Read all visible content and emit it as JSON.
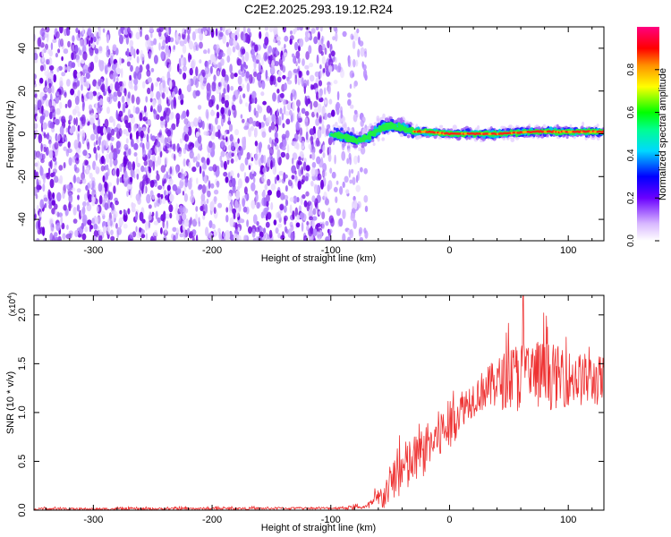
{
  "title": "C2E2.2025.293.19.12.R24",
  "colors": {
    "snr_line": "#ee3333",
    "scatter_base": "#7a1ee8",
    "band_core": "#ff2a1a"
  },
  "chart_data": [
    {
      "id": "spectrogram",
      "type": "heatmap",
      "title": "C2E2.2025.293.19.12.R24",
      "xlabel": "Height of straight line (km)",
      "ylabel": "Frequency (Hz)",
      "xlim": [
        -350,
        130
      ],
      "ylim": [
        -50,
        50
      ],
      "xticks": [
        -300,
        -200,
        -100,
        0,
        100
      ],
      "xtick_labels": [
        "-300",
        "-200",
        "-100",
        "0",
        "100"
      ],
      "yticks": [
        -40,
        -20,
        0,
        20,
        40
      ],
      "ytick_labels": [
        "-40",
        "-20",
        "0",
        "20",
        "40"
      ],
      "noise_region_x": [
        -350,
        -80
      ],
      "signal_band": {
        "x_start": -100,
        "x_end": 130,
        "center_hz": [
          {
            "x": -100,
            "y": 0
          },
          {
            "x": -90,
            "y": -1
          },
          {
            "x": -80,
            "y": -3
          },
          {
            "x": -70,
            "y": -2
          },
          {
            "x": -60,
            "y": 2
          },
          {
            "x": -50,
            "y": 4
          },
          {
            "x": -40,
            "y": 3
          },
          {
            "x": -30,
            "y": 1
          },
          {
            "x": -20,
            "y": 1
          },
          {
            "x": 0,
            "y": 0
          },
          {
            "x": 40,
            "y": 0
          },
          {
            "x": 70,
            "y": 1
          },
          {
            "x": 100,
            "y": 1
          },
          {
            "x": 130,
            "y": 1
          }
        ],
        "peak_amplitude_after_km": -30
      }
    },
    {
      "id": "colorbar",
      "type": "heatmap",
      "label": "Normalized spectral amplitude",
      "range": [
        0.0,
        1.0
      ],
      "ticks": [
        0.0,
        0.2,
        0.4,
        0.6,
        0.8
      ],
      "tick_labels": [
        "0.0",
        "0.2",
        "0.4",
        "0.6",
        "0.8"
      ]
    },
    {
      "id": "snr",
      "type": "line",
      "xlabel": "Height of straight line (km)",
      "ylabel": "SNR (10 * v/v)",
      "scale_label": "(x10",
      "scale_exponent": "4",
      "scale_close": ")",
      "xlim": [
        -350,
        130
      ],
      "ylim": [
        0,
        2.2
      ],
      "xticks": [
        -300,
        -200,
        -100,
        0,
        100
      ],
      "xtick_labels": [
        "-300",
        "-200",
        "-100",
        "0",
        "100"
      ],
      "yticks": [
        0.0,
        0.5,
        1.0,
        1.5,
        2.0
      ],
      "ytick_labels": [
        "0.0",
        "0.5",
        "1.0",
        "1.5",
        "2.0"
      ],
      "units": "x10^4",
      "envelope": [
        {
          "x": -350,
          "mean": 0.01,
          "spread": 0.01
        },
        {
          "x": -100,
          "mean": 0.02,
          "spread": 0.01
        },
        {
          "x": -70,
          "mean": 0.03,
          "spread": 0.02
        },
        {
          "x": -55,
          "mean": 0.15,
          "spread": 0.12
        },
        {
          "x": -45,
          "mean": 0.35,
          "spread": 0.2
        },
        {
          "x": -35,
          "mean": 0.45,
          "spread": 0.22
        },
        {
          "x": -25,
          "mean": 0.55,
          "spread": 0.2
        },
        {
          "x": -10,
          "mean": 0.75,
          "spread": 0.2
        },
        {
          "x": 0,
          "mean": 0.85,
          "spread": 0.2
        },
        {
          "x": 10,
          "mean": 1.05,
          "spread": 0.15
        },
        {
          "x": 25,
          "mean": 1.2,
          "spread": 0.15
        },
        {
          "x": 40,
          "mean": 1.3,
          "spread": 0.2
        },
        {
          "x": 60,
          "mean": 1.38,
          "spread": 0.3
        },
        {
          "x": 80,
          "mean": 1.38,
          "spread": 0.28
        },
        {
          "x": 100,
          "mean": 1.35,
          "spread": 0.22
        },
        {
          "x": 130,
          "mean": 1.32,
          "spread": 0.2
        }
      ],
      "peak": {
        "x": 62,
        "y": 2.2
      }
    }
  ]
}
